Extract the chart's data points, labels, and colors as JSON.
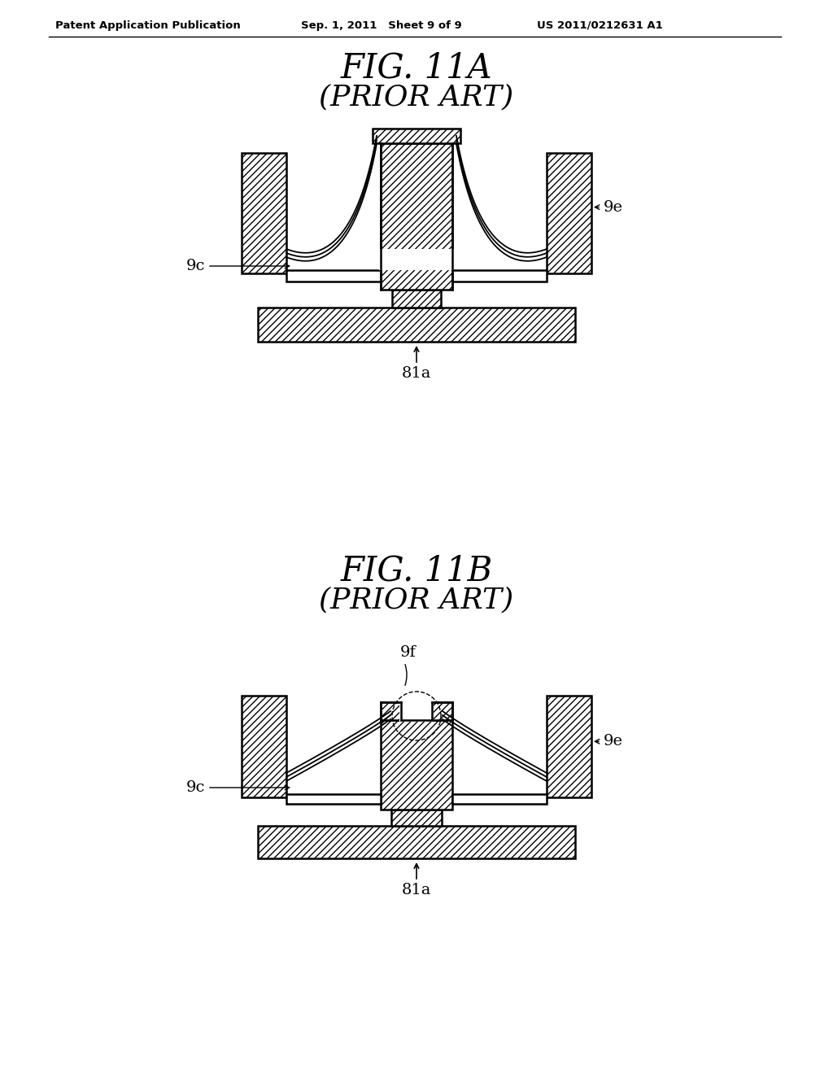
{
  "bg_color": "#ffffff",
  "line_color": "#000000",
  "header_left": "Patent Application Publication",
  "header_mid": "Sep. 1, 2011   Sheet 9 of 9",
  "header_right": "US 2011/0212631 A1",
  "fig_a_title": "FIG. 11A",
  "fig_a_subtitle": "(PRIOR ART)",
  "fig_b_title": "FIG. 11B",
  "fig_b_subtitle": "(PRIOR ART)",
  "label_9c": "9c",
  "label_9e": "9e",
  "label_9f": "9f",
  "label_81a": "81a"
}
